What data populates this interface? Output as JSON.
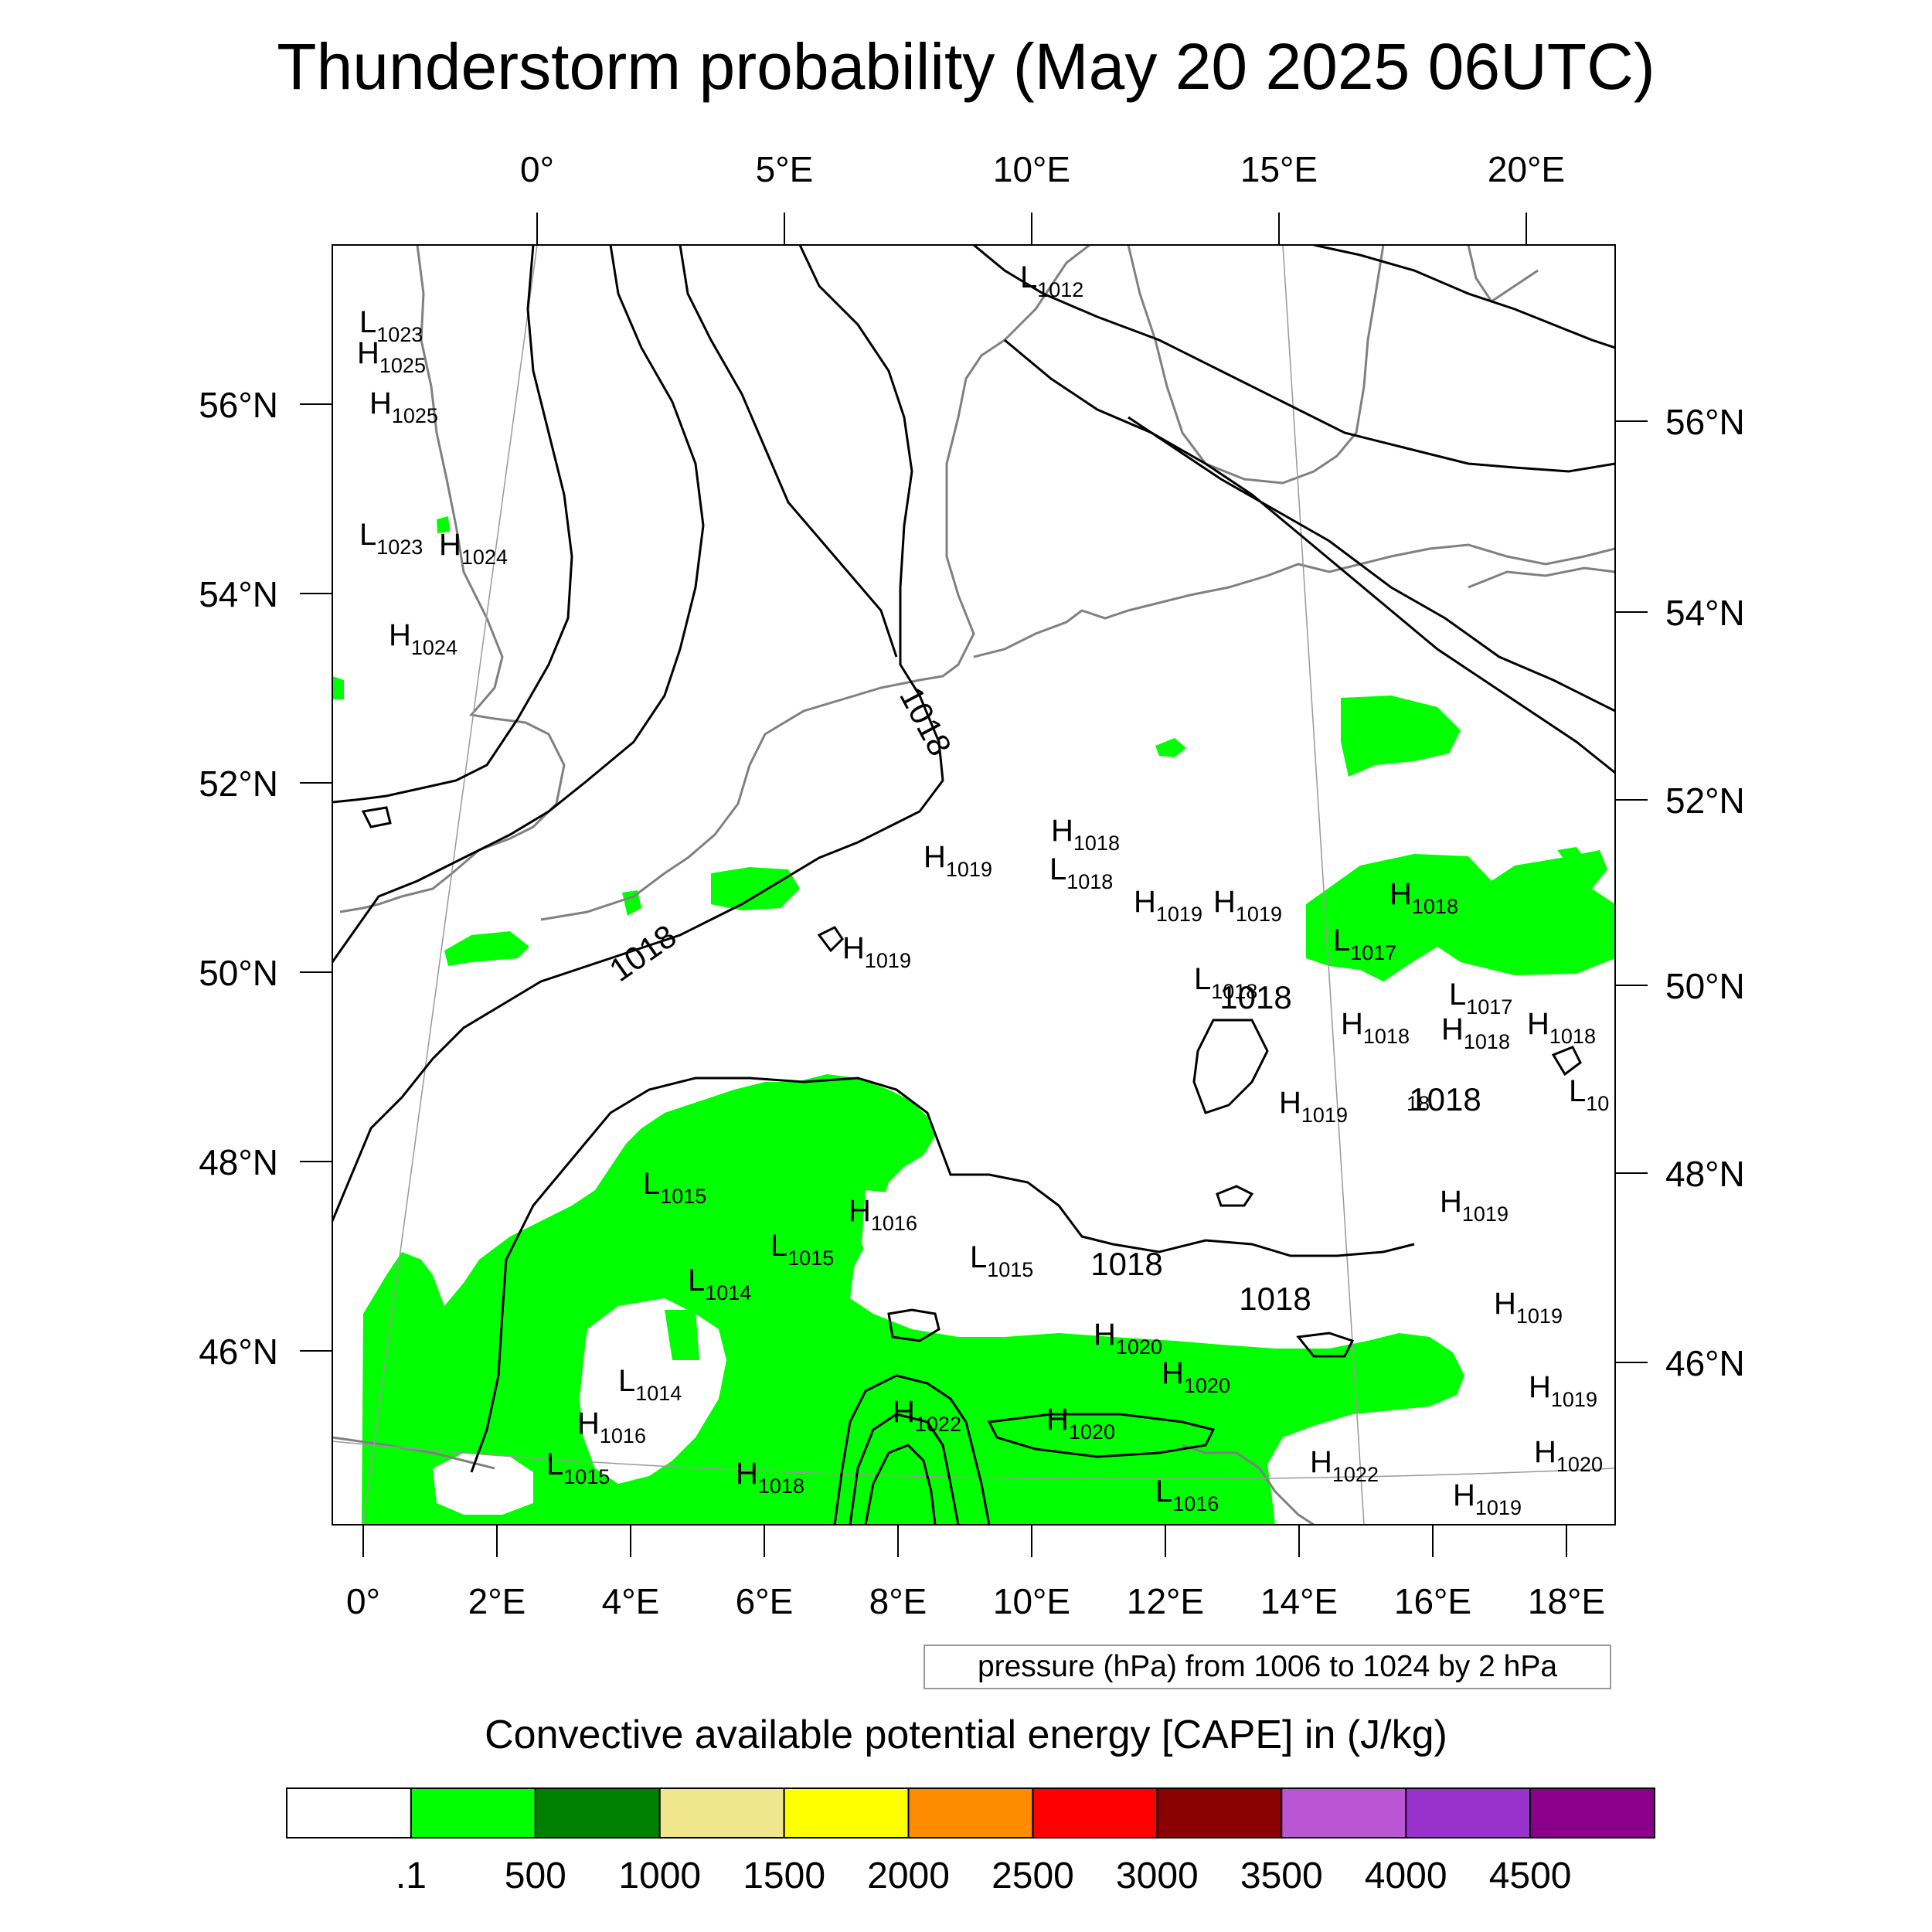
{
  "title": "Thunderstorm probability (May 20 2025 06UTC)",
  "map": {
    "top_lon_labels": [
      "0°",
      "5°E",
      "10°E",
      "15°E",
      "20°E"
    ],
    "bottom_lon_labels": [
      "0°",
      "2°E",
      "4°E",
      "6°E",
      "8°E",
      "10°E",
      "12°E",
      "14°E",
      "16°E",
      "18°E"
    ],
    "left_lat_labels": [
      "56°N",
      "54°N",
      "52°N",
      "50°N",
      "48°N",
      "46°N"
    ],
    "right_lat_labels": [
      "56°N",
      "54°N",
      "52°N",
      "50°N",
      "48°N",
      "46°N"
    ],
    "coastline_color": "#808080",
    "isobar_color": "#000000",
    "cape_fill_color": "#00ff00",
    "pressure_centers": [
      {
        "type": "L",
        "value": "1012"
      },
      {
        "type": "L",
        "value": "1023"
      },
      {
        "type": "H",
        "value": "1025"
      },
      {
        "type": "H",
        "value": "1025"
      },
      {
        "type": "L",
        "value": "1023"
      },
      {
        "type": "H",
        "value": "1024"
      },
      {
        "type": "H",
        "value": "1024"
      },
      {
        "type": "H",
        "value": "1018"
      },
      {
        "type": "H",
        "value": "1019"
      },
      {
        "type": "L",
        "value": "1018"
      },
      {
        "type": "H",
        "value": "1019"
      },
      {
        "type": "H",
        "value": "1019"
      },
      {
        "type": "H",
        "value": "1018"
      },
      {
        "type": "H",
        "value": "1019"
      },
      {
        "type": "L",
        "value": "1017"
      },
      {
        "type": "L",
        "value": "1018"
      },
      {
        "type": "L",
        "value": "1017"
      },
      {
        "type": "H",
        "value": "1018"
      },
      {
        "type": "H",
        "value": "1018"
      },
      {
        "type": "H",
        "value": "1018"
      },
      {
        "type": "H",
        "value": "1019"
      },
      {
        "type": "L",
        "value": "10"
      },
      {
        "type": "L",
        "value": "1015"
      },
      {
        "type": "H",
        "value": "1016"
      },
      {
        "type": "L",
        "value": "1015"
      },
      {
        "type": "L",
        "value": "1014"
      },
      {
        "type": "L",
        "value": "1015"
      },
      {
        "type": "H",
        "value": "1019"
      },
      {
        "type": "H",
        "value": "1019"
      },
      {
        "type": "L",
        "value": "1014"
      },
      {
        "type": "H",
        "value": "1016"
      },
      {
        "type": "L",
        "value": "1015"
      },
      {
        "type": "H",
        "value": "1018"
      },
      {
        "type": "H",
        "value": "1022"
      },
      {
        "type": "H",
        "value": "1020"
      },
      {
        "type": "H",
        "value": "1020"
      },
      {
        "type": "H",
        "value": "1020"
      },
      {
        "type": "L",
        "value": "1016"
      },
      {
        "type": "H",
        "value": "1022"
      },
      {
        "type": "H",
        "value": "1019"
      },
      {
        "type": "H",
        "value": "1020"
      },
      {
        "type": "H",
        "value": "1019"
      }
    ],
    "isobar_labels": [
      "1018",
      "1018",
      "1018",
      "18",
      "1018",
      "1018",
      "1018"
    ]
  },
  "note": "pressure (hPa) from 1006 to 1024 by 2 hPa",
  "colorbar": {
    "title": "Convective available potential energy [CAPE] in (J/kg)",
    "colors": [
      "#ffffff",
      "#00ff00",
      "#008000",
      "#f0e68c",
      "#ffff00",
      "#ff8c00",
      "#ff0000",
      "#8b0000",
      "#ba55d3",
      "#9932cc",
      "#8b008b"
    ],
    "tick_labels": [
      ".1",
      "500",
      "1000",
      "1500",
      "2000",
      "2500",
      "3000",
      "3500",
      "4000",
      "4500"
    ]
  }
}
